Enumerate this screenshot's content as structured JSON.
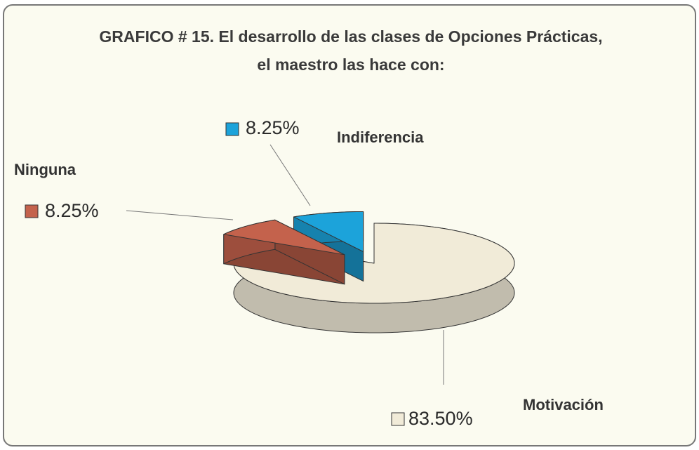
{
  "chart_data": {
    "type": "pie",
    "title": "GRAFICO # 15. El desarrollo de las clases de Opciones Prácticas, el maestro las hace con:",
    "categories": [
      "Motivación",
      "Ninguna",
      "Indiferencia"
    ],
    "values": [
      83.5,
      8.25,
      8.25
    ],
    "value_labels": [
      "83.50%",
      "8.25%",
      "8.25%"
    ],
    "colors": [
      "#f1ebd8",
      "#c4624c",
      "#1ca3da"
    ],
    "exploded": [
      false,
      true,
      true
    ],
    "three_d": true
  }
}
